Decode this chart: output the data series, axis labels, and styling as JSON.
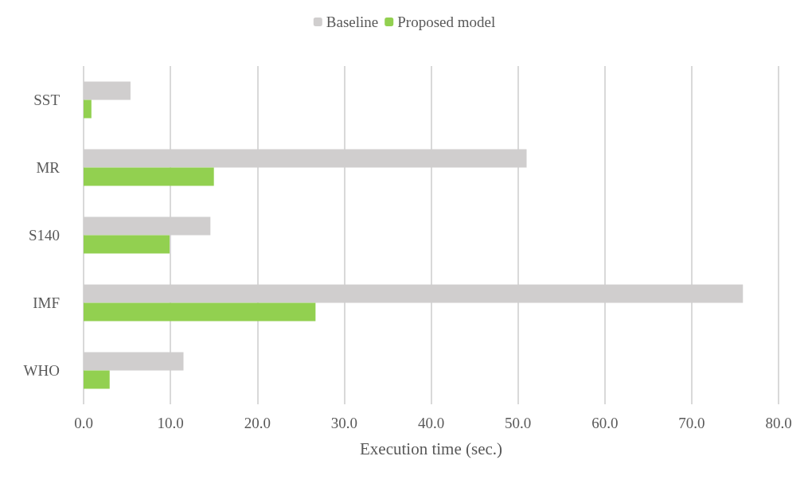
{
  "chart_data": {
    "type": "bar",
    "orientation": "horizontal",
    "xlabel": "Execution time (sec.)",
    "categories": [
      "SST",
      "MR",
      "S140",
      "IMF",
      "WHO"
    ],
    "series": [
      {
        "name": "Baseline",
        "color": "#d0cece",
        "values": [
          5.4,
          51.0,
          14.6,
          75.9,
          11.5
        ]
      },
      {
        "name": "Proposed model",
        "color": "#92d050",
        "values": [
          0.9,
          15.0,
          9.9,
          26.7,
          3.0
        ]
      }
    ],
    "xlim": [
      0,
      80
    ],
    "xticks": [
      {
        "value": 0,
        "label": "0.0"
      },
      {
        "value": 10,
        "label": "10.0"
      },
      {
        "value": 20,
        "label": "20.0"
      },
      {
        "value": 30,
        "label": "30.0"
      },
      {
        "value": 40,
        "label": "40.0"
      },
      {
        "value": 50,
        "label": "50.0"
      },
      {
        "value": 60,
        "label": "60.0"
      },
      {
        "value": 70,
        "label": "70.0"
      },
      {
        "value": 80,
        "label": "80.0"
      }
    ],
    "grid": "x",
    "legend": "top"
  }
}
